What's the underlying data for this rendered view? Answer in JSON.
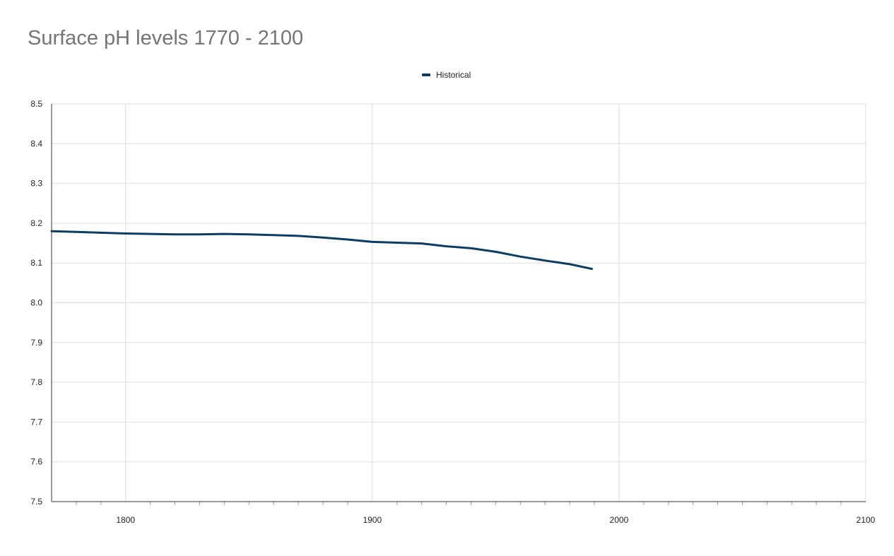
{
  "chart_data": {
    "type": "line",
    "title": "Surface pH levels 1770 - 2100",
    "xlabel": "",
    "ylabel": "",
    "xlim": [
      1770,
      2100
    ],
    "ylim": [
      7.5,
      8.5
    ],
    "x_ticks": [
      "1800",
      "1900",
      "2000",
      "2100"
    ],
    "y_ticks": [
      "7.5",
      "7.6",
      "7.7",
      "7.8",
      "7.9",
      "8.0",
      "8.1",
      "8.2",
      "8.3",
      "8.4",
      "8.5"
    ],
    "grid": true,
    "legend_position": "top-center",
    "series": [
      {
        "name": "Historical",
        "color": "#0b3d63",
        "x": [
          1770,
          1780,
          1790,
          1800,
          1810,
          1820,
          1830,
          1840,
          1850,
          1860,
          1870,
          1880,
          1890,
          1900,
          1910,
          1920,
          1930,
          1940,
          1950,
          1960,
          1970,
          1980,
          1989
        ],
        "y": [
          8.18,
          8.178,
          8.176,
          8.174,
          8.173,
          8.172,
          8.172,
          8.173,
          8.172,
          8.17,
          8.168,
          8.164,
          8.159,
          8.153,
          8.151,
          8.149,
          8.142,
          8.137,
          8.128,
          8.116,
          8.106,
          8.097,
          8.085
        ]
      }
    ]
  }
}
